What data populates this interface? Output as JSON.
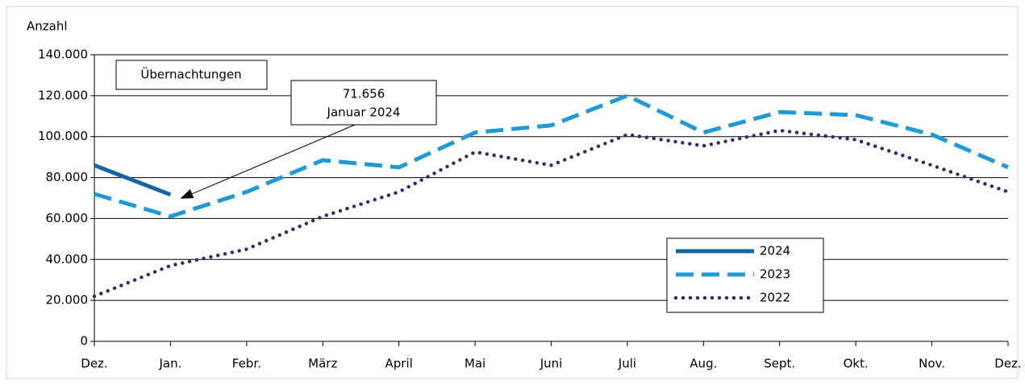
{
  "chart_data": {
    "type": "line",
    "title": "Übernachtungen",
    "ylabel": "Anzahl",
    "categories": [
      "Dez.",
      "Jan.",
      "Febr.",
      "März",
      "April",
      "Mai",
      "Juni",
      "Juli",
      "Aug.",
      "Sept.",
      "Okt.",
      "Nov.",
      "Dez."
    ],
    "series": [
      {
        "name": "2024",
        "color": "#1565a0",
        "style": "solid",
        "values": [
          86000,
          71656,
          null,
          null,
          null,
          null,
          null,
          null,
          null,
          null,
          null,
          null,
          null
        ]
      },
      {
        "name": "2023",
        "color": "#1e9ad6",
        "style": "dashed",
        "values": [
          72000,
          61000,
          73000,
          88500,
          85000,
          102000,
          105500,
          120000,
          102000,
          112000,
          110500,
          101000,
          85000
        ]
      },
      {
        "name": "2022",
        "color": "#2b2f6b",
        "style": "dotted",
        "values": [
          22000,
          37000,
          45000,
          61000,
          73000,
          92500,
          86000,
          101000,
          95500,
          103000,
          98500,
          86000,
          73000
        ]
      }
    ],
    "ylim": [
      0,
      140000
    ],
    "yticks": [
      0,
      {
        "value": 20000,
        "label": "20.000"
      },
      {
        "value": 40000,
        "label": "40.000"
      },
      {
        "value": 60000,
        "label": "60.000"
      },
      {
        "value": 80000,
        "label": "80.000"
      },
      {
        "value": 100000,
        "label": "100.000"
      },
      {
        "value": 120000,
        "label": "120.000"
      },
      {
        "value": 140000,
        "label": "140.000"
      }
    ],
    "grid": true,
    "legend": "right",
    "annotation": {
      "label": "71.656",
      "text": "Januar 2024",
      "series": 0,
      "index": 1
    }
  }
}
